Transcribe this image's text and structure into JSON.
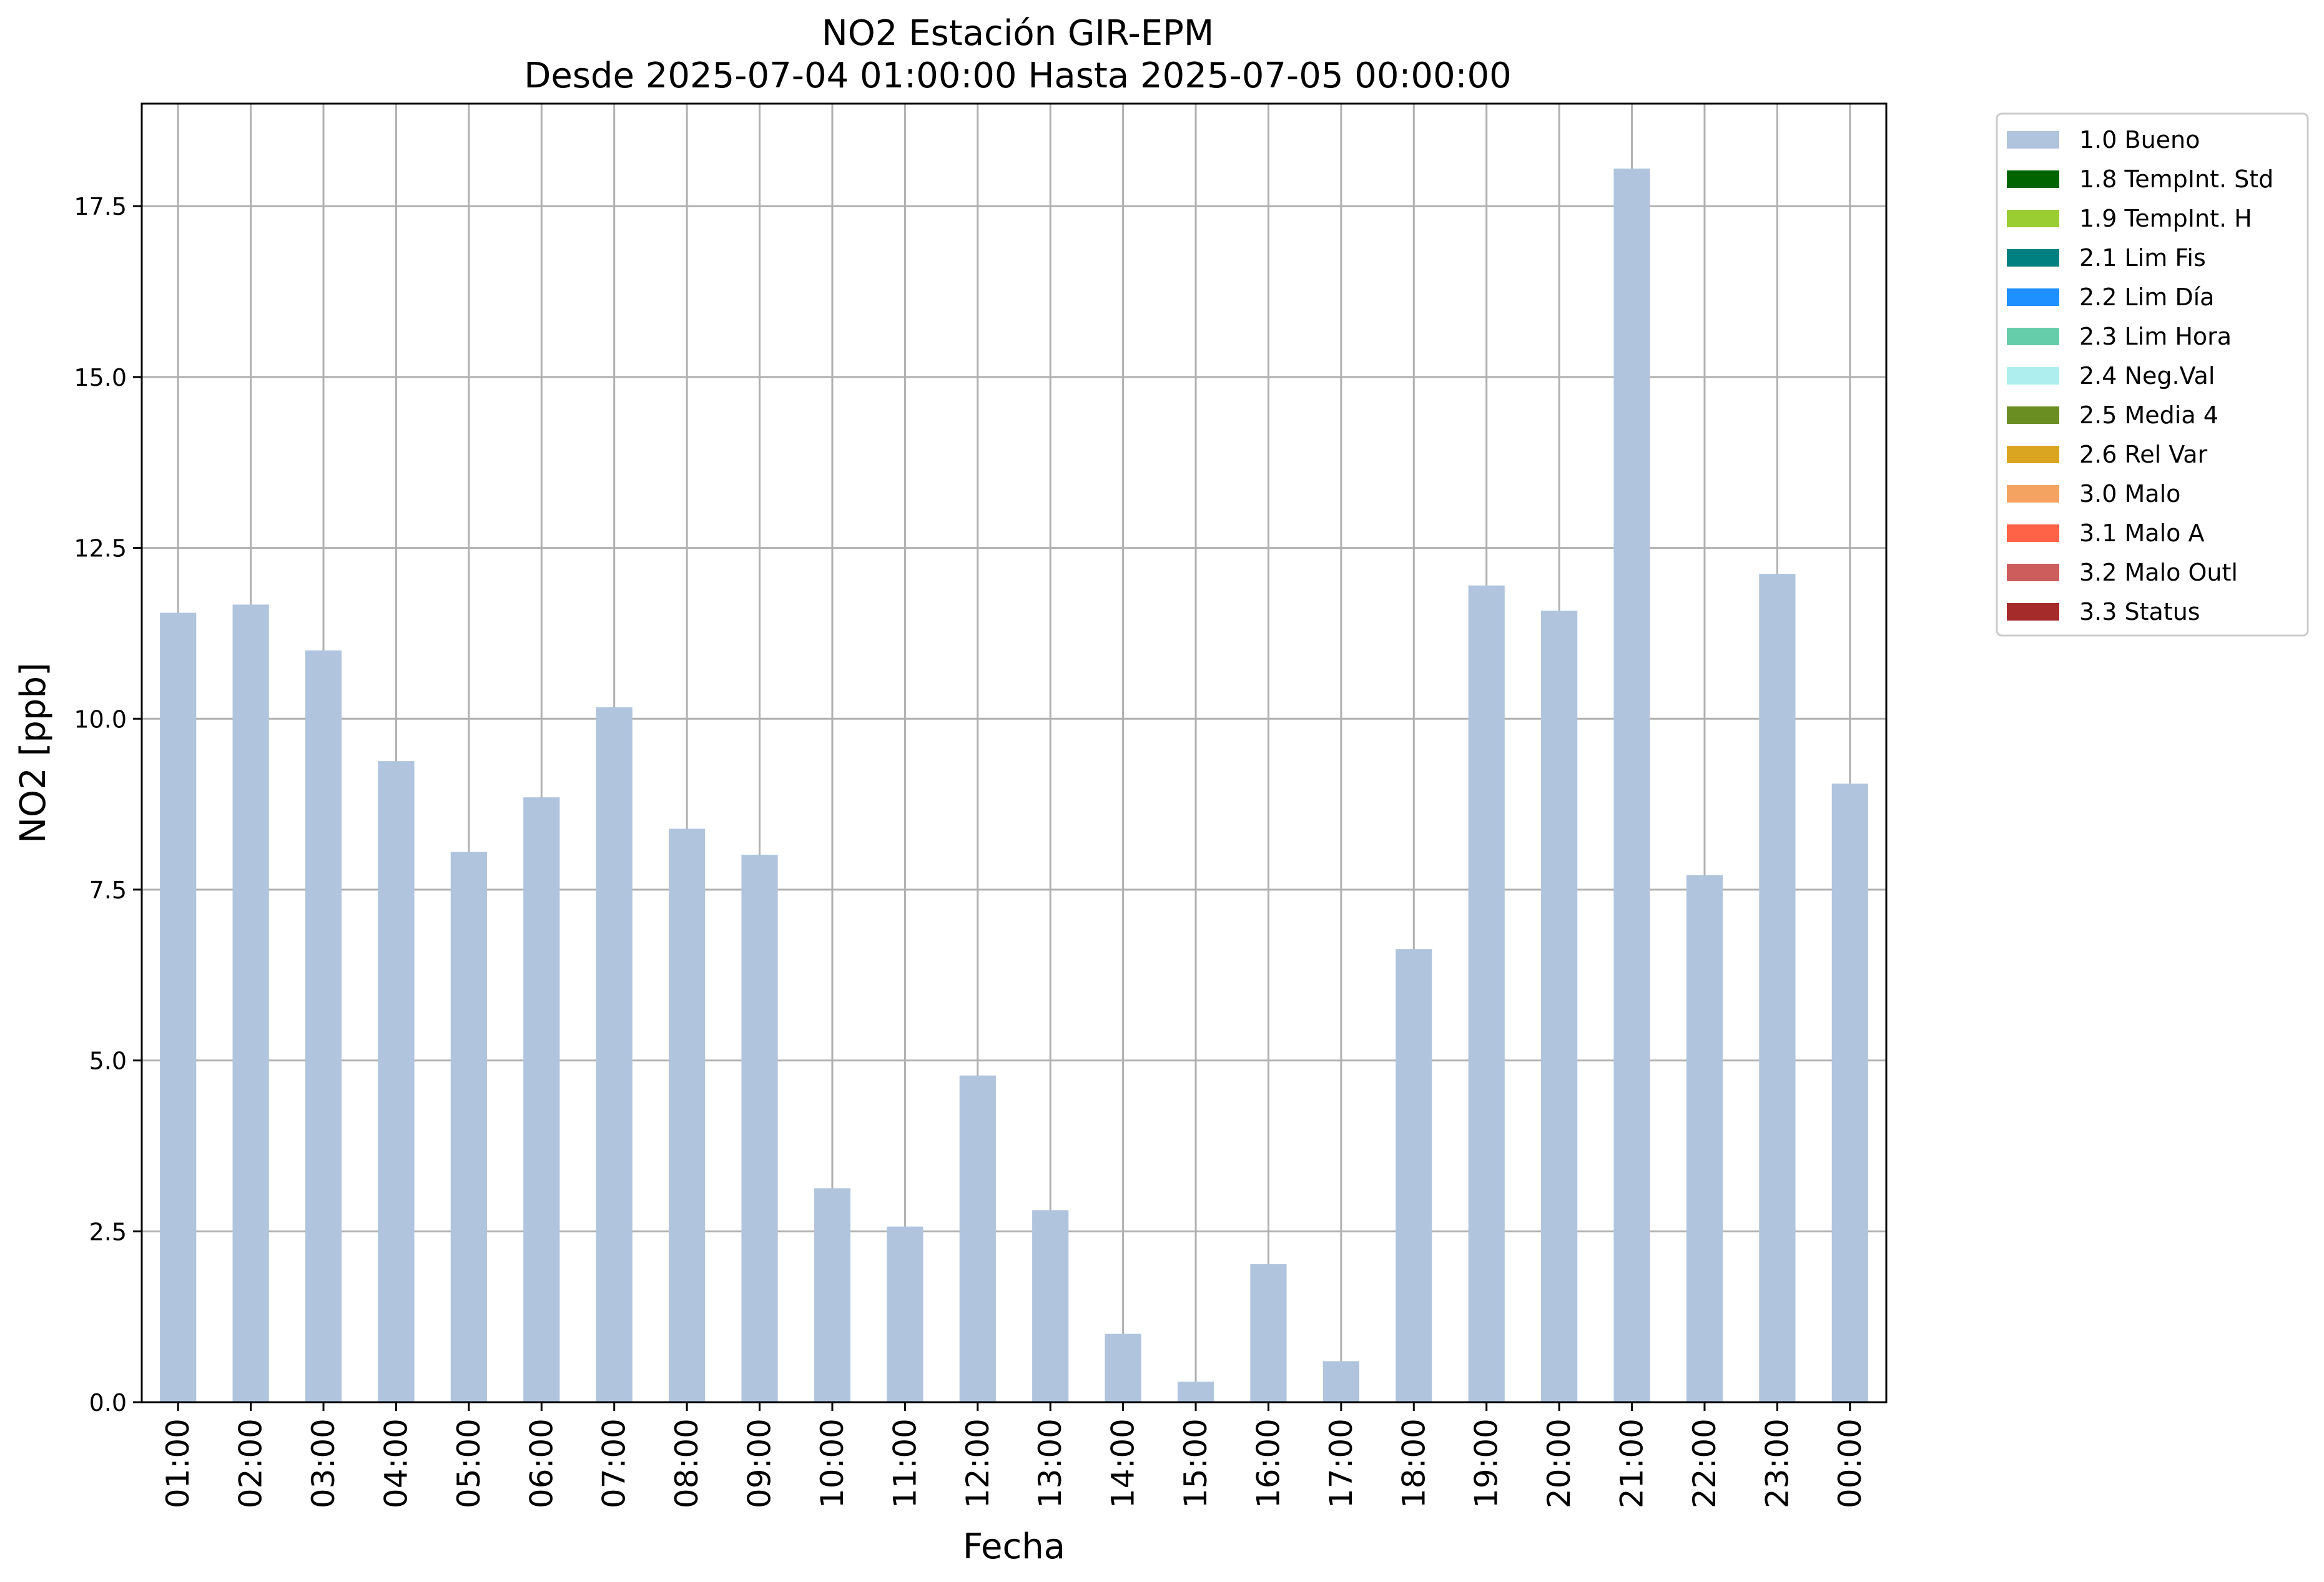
{
  "chart_data": {
    "type": "bar",
    "title": "NO2 Estación GIR-EPM",
    "subtitle": "Desde 2025-07-04 01:00:00 Hasta 2025-07-05 00:00:00",
    "xlabel": "Fecha",
    "ylabel": "NO2 [ppb]",
    "ylim": [
      0,
      19.0
    ],
    "yticks": [
      0.0,
      2.5,
      5.0,
      7.5,
      10.0,
      12.5,
      15.0,
      17.5
    ],
    "ytick_labels": [
      "0.0",
      "2.5",
      "5.0",
      "7.5",
      "10.0",
      "12.5",
      "15.0",
      "17.5"
    ],
    "grid": true,
    "legend_position": "outside top-right",
    "categories": [
      "01:00",
      "02:00",
      "03:00",
      "04:00",
      "05:00",
      "06:00",
      "07:00",
      "08:00",
      "09:00",
      "10:00",
      "11:00",
      "12:00",
      "13:00",
      "14:00",
      "15:00",
      "16:00",
      "17:00",
      "18:00",
      "19:00",
      "20:00",
      "21:00",
      "22:00",
      "23:00",
      "00:00"
    ],
    "series": [
      {
        "name": "1.0 Bueno",
        "color": "#b0c4de",
        "values": [
          11.55,
          11.67,
          11.0,
          9.38,
          8.05,
          8.85,
          10.17,
          8.39,
          8.01,
          3.13,
          2.57,
          4.78,
          2.81,
          1.0,
          0.3,
          2.02,
          0.6,
          6.63,
          11.95,
          11.58,
          18.05,
          7.71,
          12.12,
          9.05
        ]
      }
    ],
    "legend": [
      {
        "label": "1.0 Bueno",
        "color": "#b0c4de"
      },
      {
        "label": "1.8 TempInt. Std",
        "color": "#006400"
      },
      {
        "label": "1.9 TempInt. H",
        "color": "#9acd32"
      },
      {
        "label": "2.1 Lim Fis",
        "color": "#008080"
      },
      {
        "label": "2.2 Lim Día",
        "color": "#1e90ff"
      },
      {
        "label": "2.3 Lim Hora",
        "color": "#66cdaa"
      },
      {
        "label": "2.4 Neg.Val",
        "color": "#afeeee"
      },
      {
        "label": "2.5 Media 4",
        "color": "#6b8e23"
      },
      {
        "label": "2.6 Rel Var",
        "color": "#daa520"
      },
      {
        "label": "3.0 Malo",
        "color": "#f4a460"
      },
      {
        "label": "3.1 Malo A",
        "color": "#ff6347"
      },
      {
        "label": "3.2 Malo Outl",
        "color": "#cd5c5c"
      },
      {
        "label": "3.3 Status",
        "color": "#a52a2a"
      }
    ]
  }
}
